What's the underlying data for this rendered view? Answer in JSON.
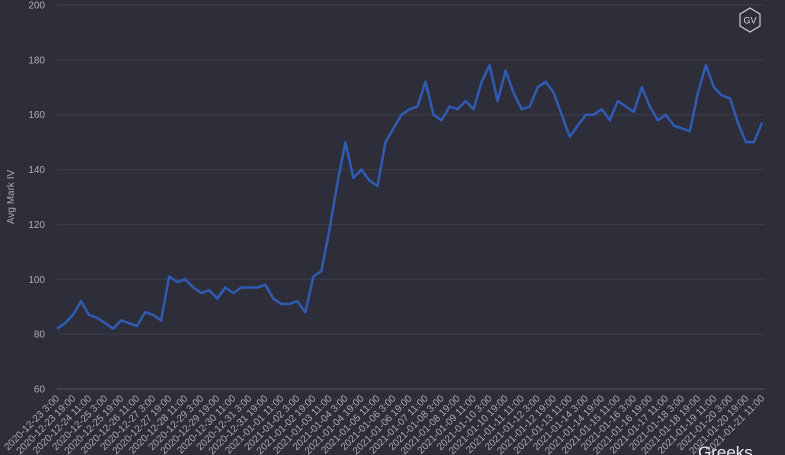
{
  "chart_data": {
    "type": "line",
    "y_label": "Avg Mark IV",
    "logo": "GV",
    "watermark": "Greeks",
    "color": "#2f5bb3",
    "ylim": [
      60,
      200
    ],
    "yticks": [
      60,
      80,
      100,
      120,
      140,
      160,
      180,
      200
    ],
    "grid": true,
    "categories": [
      "2020-12-23 3:00",
      null,
      "2020-12-23 19:00",
      null,
      "2020-12-24 11:00",
      null,
      "2020-12-25 3:00",
      null,
      "2020-12-25 19:00",
      null,
      "2020-12-26 11:00",
      null,
      "2020-12-27 3:00",
      null,
      "2020-12-27 19:00",
      null,
      "2020-12-28 11:00",
      null,
      "2020-12-29 3:00",
      null,
      "2020-12-29 19:00",
      null,
      "2020-12-30 11:00",
      null,
      "2020-12-31 3:00",
      null,
      "2020-12-31 19:00",
      null,
      "2021-01-01 11:00",
      null,
      "2021-01-02 3:00",
      null,
      "2021-01-02 19:00",
      null,
      "2021-01-03 11:00",
      null,
      "2021-01-04 3:00",
      null,
      "2021-01-04 19:00",
      null,
      "2021-01-05 11:00",
      null,
      "2021-01-06 3:00",
      null,
      "2021-01-06 19:00",
      null,
      "2021-01-07 11:00",
      null,
      "2021-01-08 3:00",
      null,
      "2021-01-08 19:00",
      null,
      "2021-01-09 11:00",
      null,
      "2021-01-10 3:00",
      null,
      "2021-01-10 19:00",
      null,
      "2021-01-11 11:00",
      null,
      "2021-01-12 3:00",
      null,
      "2021-01-12 19:00",
      null,
      "2021-01-13 11:00",
      null,
      "2021-01-14 3:00",
      null,
      "2021-01-14 19:00",
      null,
      "2021-01-15 11:00",
      null,
      "2021-01-16 3:00",
      null,
      "2021-01-16 19:00",
      null,
      "2021-01-17 11:00",
      null,
      "2021-01-18 3:00",
      null,
      "2021-01-18 19:00",
      null,
      "2021-01-19 11:00",
      null,
      "2021-01-20 3:00",
      null,
      "2021-01-20 19:00",
      null,
      "2021-01-21 11:00"
    ],
    "values": [
      82,
      84,
      87,
      92,
      87,
      86,
      84,
      82,
      85,
      84,
      83,
      88,
      87,
      85,
      101,
      99,
      100,
      97,
      95,
      96,
      93,
      97,
      95,
      97,
      97,
      97,
      98,
      93,
      91,
      91,
      92,
      88,
      101,
      103,
      118,
      135,
      150,
      137,
      140,
      136,
      134,
      150,
      155,
      160,
      162,
      163,
      172,
      160,
      158,
      163,
      162,
      165,
      162,
      172,
      178,
      165,
      176,
      168,
      162,
      163,
      170,
      172,
      168,
      160,
      152,
      156,
      160,
      160,
      162,
      158,
      165,
      163,
      161,
      170,
      163,
      158,
      160,
      156,
      155,
      154,
      168,
      178,
      170,
      167,
      166,
      157,
      150,
      150,
      157
    ]
  }
}
